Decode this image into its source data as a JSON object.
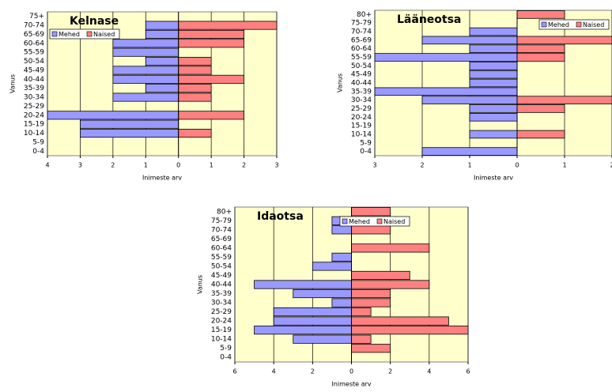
{
  "chart_data": [
    {
      "type": "bar",
      "orientation": "horizontal",
      "title": "Kelnase",
      "y_label": "Vanus",
      "x_label": "Inimeste arv",
      "categories": [
        "0-4",
        "5-9",
        "10-14",
        "15-19",
        "20-24",
        "25-29",
        "30-34",
        "35-39",
        "40-44",
        "45-49",
        "50-54",
        "55-59",
        "60-64",
        "65-69",
        "70-74",
        "75+"
      ],
      "series": [
        {
          "name": "Mehed",
          "color": "#9999ff",
          "values": [
            0,
            0,
            -3,
            -3,
            -4,
            0,
            -2,
            -1,
            -2,
            -2,
            -1,
            -2,
            -2,
            -1,
            -1,
            0
          ]
        },
        {
          "name": "Naised",
          "color": "#ff8080",
          "values": [
            0,
            0,
            1,
            0,
            2,
            0,
            1,
            1,
            2,
            1,
            1,
            0,
            2,
            2,
            3,
            0
          ]
        }
      ],
      "xlim": [
        -4,
        3
      ],
      "xticks": [
        {
          "value": -4,
          "label": "4"
        },
        {
          "value": -3,
          "label": "3"
        },
        {
          "value": -2,
          "label": "2"
        },
        {
          "value": -1,
          "label": "1"
        },
        0,
        1,
        2,
        3
      ],
      "grid": true,
      "legend": "upper left",
      "background": "#ffffcc"
    },
    {
      "type": "bar",
      "orientation": "horizontal",
      "title": "Lääneotsa",
      "y_label": "Vanus",
      "x_label": "Inimeste arv",
      "categories": [
        "0-4",
        "5-9",
        "10-14",
        "15-19",
        "20-24",
        "25-29",
        "30-34",
        "35-39",
        "40-44",
        "45-49",
        "50-54",
        "55-59",
        "60-64",
        "65-69",
        "70-74",
        "75-79",
        "80+"
      ],
      "series": [
        {
          "name": "Mehed",
          "color": "#9999ff",
          "values": [
            -2,
            0,
            -1,
            0,
            -1,
            -1,
            -2,
            -3,
            -1,
            -1,
            -1,
            -3,
            -1,
            -2,
            -1,
            0,
            0
          ]
        },
        {
          "name": "Naised",
          "color": "#ff8080",
          "values": [
            0,
            0,
            1,
            0,
            0,
            1,
            2,
            0,
            0,
            0,
            0,
            1,
            1,
            2,
            0,
            0,
            1
          ]
        }
      ],
      "xlim": [
        -3,
        2
      ],
      "xticks": [
        {
          "value": -3,
          "label": "3"
        },
        {
          "value": -2,
          "label": "2"
        },
        {
          "value": -1,
          "label": "1"
        },
        0,
        1,
        2
      ],
      "grid": true,
      "legend": "upper right",
      "background": "#ffffcc"
    },
    {
      "type": "bar",
      "orientation": "horizontal",
      "title": "Idaotsa",
      "y_label": "Vanus",
      "x_label": "Inimeste arv",
      "categories": [
        "0-4",
        "5-9",
        "10-14",
        "15-19",
        "20-24",
        "25-29",
        "30-34",
        "35-39",
        "40-44",
        "45-49",
        "50-54",
        "55-59",
        "60-64",
        "65-69",
        "70-74",
        "75-79",
        "80+"
      ],
      "series": [
        {
          "name": "Mehed",
          "color": "#9999ff",
          "values": [
            0,
            0,
            -3,
            -5,
            -4,
            -4,
            -1,
            -3,
            -5,
            0,
            -2,
            -1,
            0,
            0,
            -1,
            -1,
            0
          ]
        },
        {
          "name": "Naised",
          "color": "#ff8080",
          "values": [
            0,
            2,
            1,
            6,
            5,
            1,
            2,
            2,
            4,
            3,
            0,
            0,
            4,
            0,
            2,
            0,
            2
          ]
        }
      ],
      "xlim": [
        -6,
        6
      ],
      "xticks": [
        {
          "value": -6,
          "label": "6"
        },
        {
          "value": -4,
          "label": "4"
        },
        {
          "value": -2,
          "label": "2"
        },
        0,
        2,
        4,
        6
      ],
      "grid": true,
      "legend": "upper center",
      "background": "#ffffcc"
    }
  ]
}
